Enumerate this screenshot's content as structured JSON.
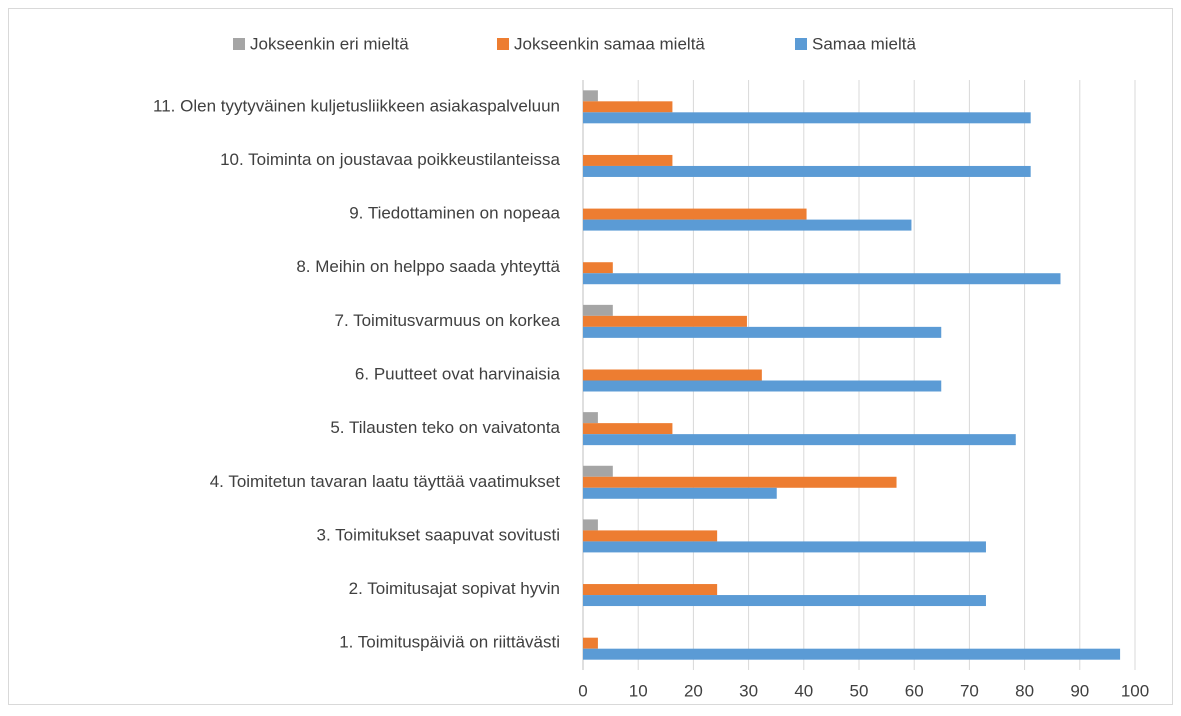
{
  "chart_data": {
    "type": "hbar",
    "categories": [
      "1. Toimituspäiviä on riittävästi",
      "2. Toimitusajat sopivat hyvin",
      "3. Toimitukset saapuvat sovitusti",
      "4. Toimitetun tavaran laatu täyttää vaatimukset",
      "5. Tilausten teko on vaivatonta",
      "6. Puutteet ovat harvinaisia",
      "7. Toimitusvarmuus on korkea",
      "8. Meihin on helppo saada yhteyttä",
      "9. Tiedottaminen on nopeaa",
      "10. Toiminta on joustavaa poikkeustilanteissa",
      "11. Olen tyytyväinen kuljetusliikkeen asiakaspalveluun"
    ],
    "series": [
      {
        "name": "Jokseenkin eri mieltä",
        "color": "#a5a5a5",
        "values": [
          0,
          0,
          2.7,
          5.4,
          2.7,
          0,
          5.4,
          0,
          0,
          0,
          2.7
        ]
      },
      {
        "name": "Jokseenkin samaa mieltä",
        "color": "#ed7d31",
        "values": [
          2.7,
          24.3,
          24.3,
          56.8,
          16.2,
          32.4,
          29.7,
          5.4,
          40.5,
          16.2,
          16.2
        ]
      },
      {
        "name": "Samaa mieltä",
        "color": "#5b9bd5",
        "values": [
          97.3,
          73,
          73,
          35.1,
          78.4,
          64.9,
          64.9,
          86.5,
          59.5,
          81.1,
          81.1
        ]
      }
    ],
    "xlim": [
      0,
      100
    ],
    "xticks": [
      0,
      10,
      20,
      30,
      40,
      50,
      60,
      70,
      80,
      90,
      100
    ],
    "grid": true,
    "legend": "top"
  }
}
